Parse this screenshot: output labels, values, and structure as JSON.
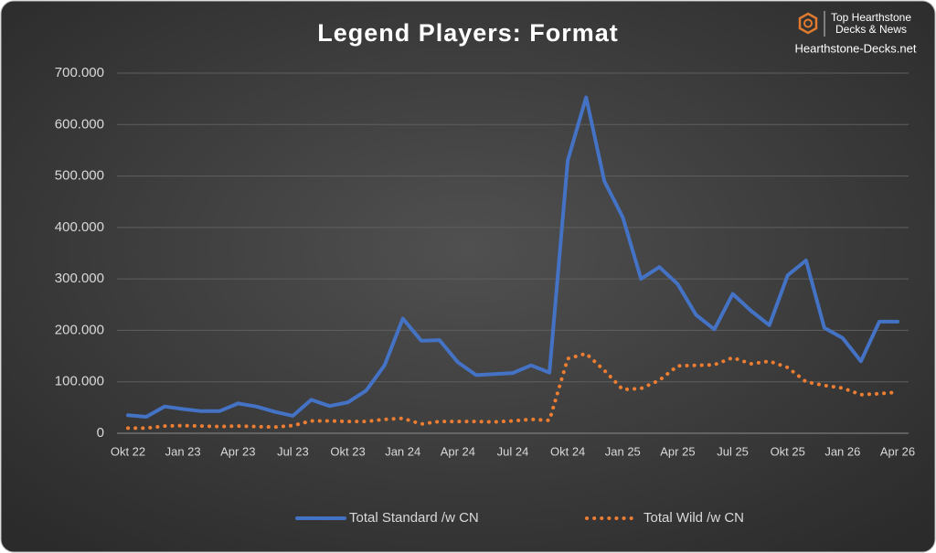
{
  "chart_data": {
    "type": "line",
    "title": "Legend Players: Format",
    "categories": [
      "Okt 22",
      null,
      null,
      "Jan 23",
      null,
      null,
      "Apr 23",
      null,
      null,
      "Jul 23",
      null,
      null,
      "Okt 23",
      null,
      null,
      "Jan 24",
      null,
      null,
      "Apr 24",
      null,
      null,
      "Jul 24",
      null,
      null,
      "Okt 24",
      null,
      null,
      "Jan 25",
      null,
      null,
      "Apr 25",
      null,
      null,
      "Jul 25",
      null,
      null,
      "Okt 25",
      null,
      null,
      "Jan 26",
      null,
      null,
      "Apr 26"
    ],
    "series": [
      {
        "name": "Total Standard /w CN",
        "color": "#4472c4",
        "style": "solid",
        "values": [
          35000,
          32000,
          52000,
          47000,
          43000,
          43000,
          58000,
          52000,
          42000,
          34000,
          65000,
          53000,
          60000,
          83000,
          132000,
          223000,
          180000,
          181000,
          138000,
          113000,
          115000,
          117000,
          132000,
          118000,
          530000,
          653000,
          490000,
          420000,
          300000,
          323000,
          290000,
          230000,
          202000,
          271000,
          238000,
          210000,
          307000,
          336000,
          205000,
          185000,
          140000,
          217000,
          217000
        ]
      },
      {
        "name": "Total Wild /w CN",
        "color": "#ed7d31",
        "style": "dotted",
        "values": [
          10000,
          10000,
          14000,
          15000,
          14000,
          13000,
          14000,
          13000,
          12000,
          15000,
          24000,
          24000,
          23000,
          23000,
          27000,
          29000,
          18000,
          23000,
          23000,
          23000,
          22000,
          24000,
          27000,
          25000,
          145000,
          155000,
          122000,
          85000,
          87000,
          103000,
          131000,
          132000,
          133000,
          147000,
          135000,
          140000,
          128000,
          100000,
          93000,
          88000,
          75000,
          77000,
          80000
        ]
      }
    ],
    "ylim": [
      0,
      700000
    ],
    "yticks": [
      0,
      {
        "value": 100000,
        "label": "100.000"
      },
      {
        "value": 200000,
        "label": "200.000"
      },
      {
        "value": 300000,
        "label": "300.000"
      },
      {
        "value": 400000,
        "label": "400.000"
      },
      {
        "value": 500000,
        "label": "500.000"
      },
      {
        "value": 600000,
        "label": "600.000"
      },
      {
        "value": 700000,
        "label": "700.000"
      }
    ],
    "grid": true,
    "legend": "bottom"
  },
  "logo": {
    "line1": "Top Hearthstone",
    "line2": "Decks & News",
    "site": "Hearthstone-Decks.net"
  }
}
